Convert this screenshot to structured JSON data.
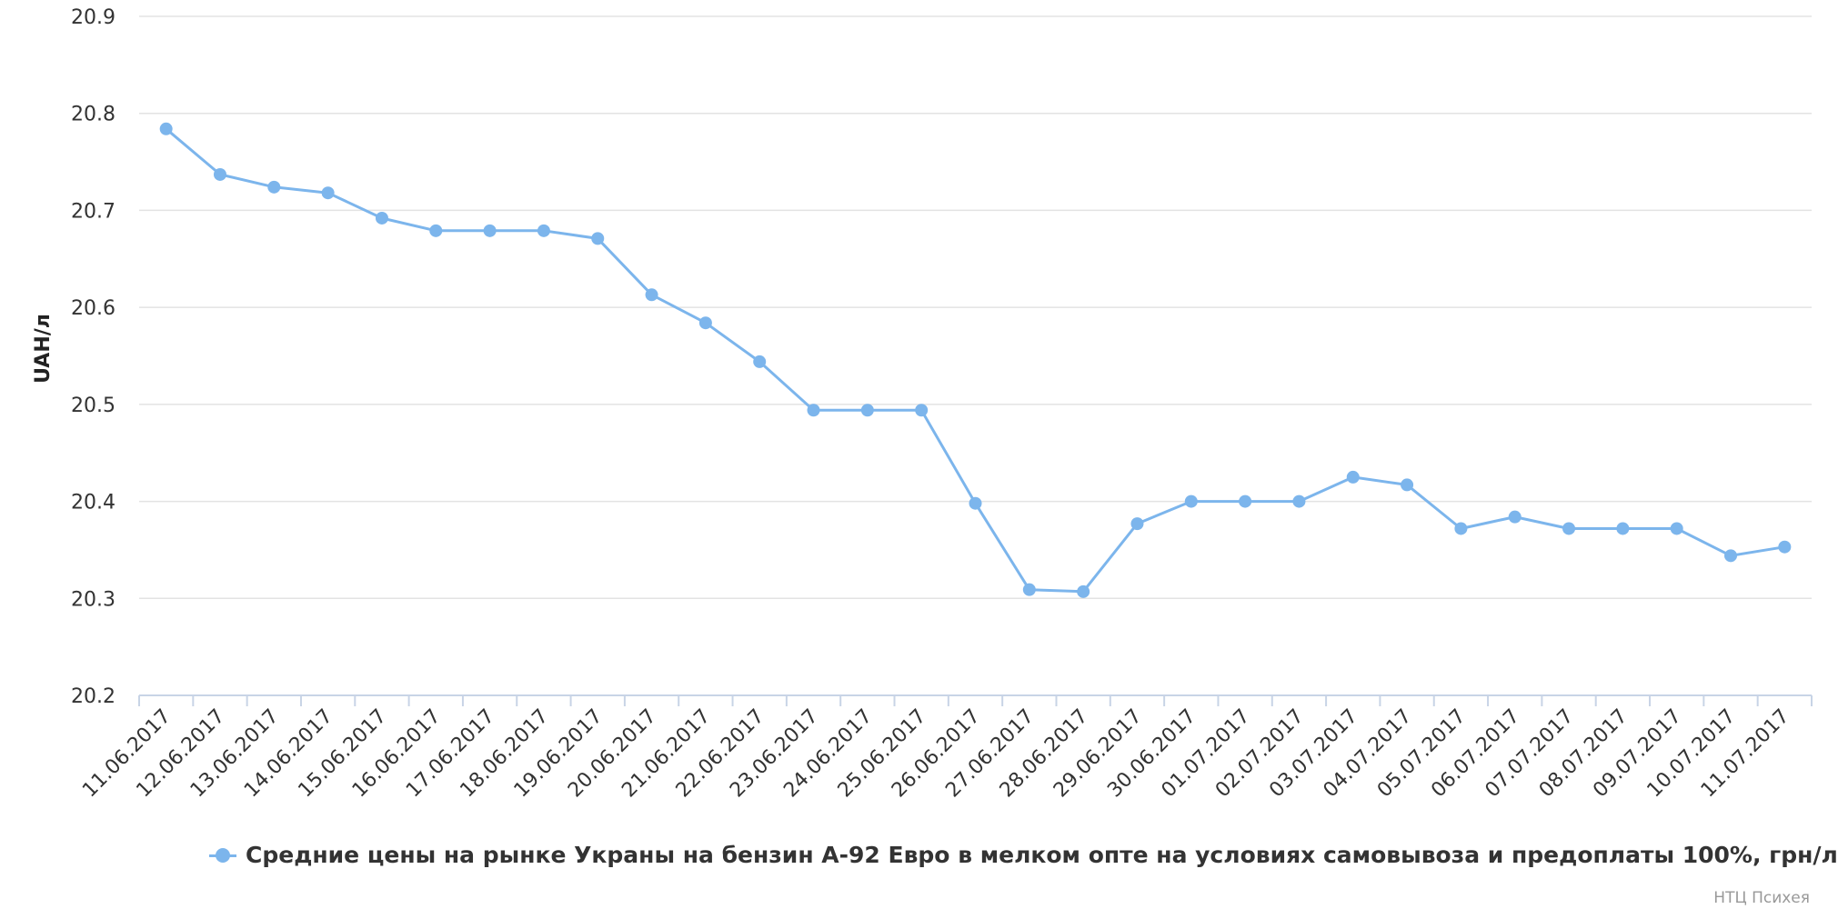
{
  "chart_data": {
    "type": "line",
    "ylabel": "UAH/л",
    "ylim": [
      20.2,
      20.9
    ],
    "yticks": [
      "20.9",
      "20.8",
      "20.7",
      "20.6",
      "20.5",
      "20.4",
      "20.3",
      "20.2"
    ],
    "grid": true,
    "legend_position": "bottom",
    "categories": [
      "11.06.2017",
      "12.06.2017",
      "13.06.2017",
      "14.06.2017",
      "15.06.2017",
      "16.06.2017",
      "17.06.2017",
      "18.06.2017",
      "19.06.2017",
      "20.06.2017",
      "21.06.2017",
      "22.06.2017",
      "23.06.2017",
      "24.06.2017",
      "25.06.2017",
      "26.06.2017",
      "27.06.2017",
      "28.06.2017",
      "29.06.2017",
      "30.06.2017",
      "01.07.2017",
      "02.07.2017",
      "03.07.2017",
      "04.07.2017",
      "05.07.2017",
      "06.07.2017",
      "07.07.2017",
      "08.07.2017",
      "09.07.2017",
      "10.07.2017",
      "11.07.2017"
    ],
    "series": [
      {
        "name": "Средние цены на рынке Украны на бензин А-92 Евро в мелком опте на условиях самовывоза и предоплаты 100%, грн/л",
        "color": "#7cb5ec",
        "values": [
          20.784,
          20.737,
          20.724,
          20.718,
          20.692,
          20.679,
          20.679,
          20.679,
          20.671,
          20.613,
          20.584,
          20.544,
          20.494,
          20.494,
          20.494,
          20.398,
          20.309,
          20.307,
          20.377,
          20.4,
          20.4,
          20.4,
          20.425,
          20.417,
          20.372,
          20.384,
          20.372,
          20.372,
          20.372,
          20.344,
          20.353
        ]
      }
    ]
  },
  "credit": "НТЦ Психея"
}
